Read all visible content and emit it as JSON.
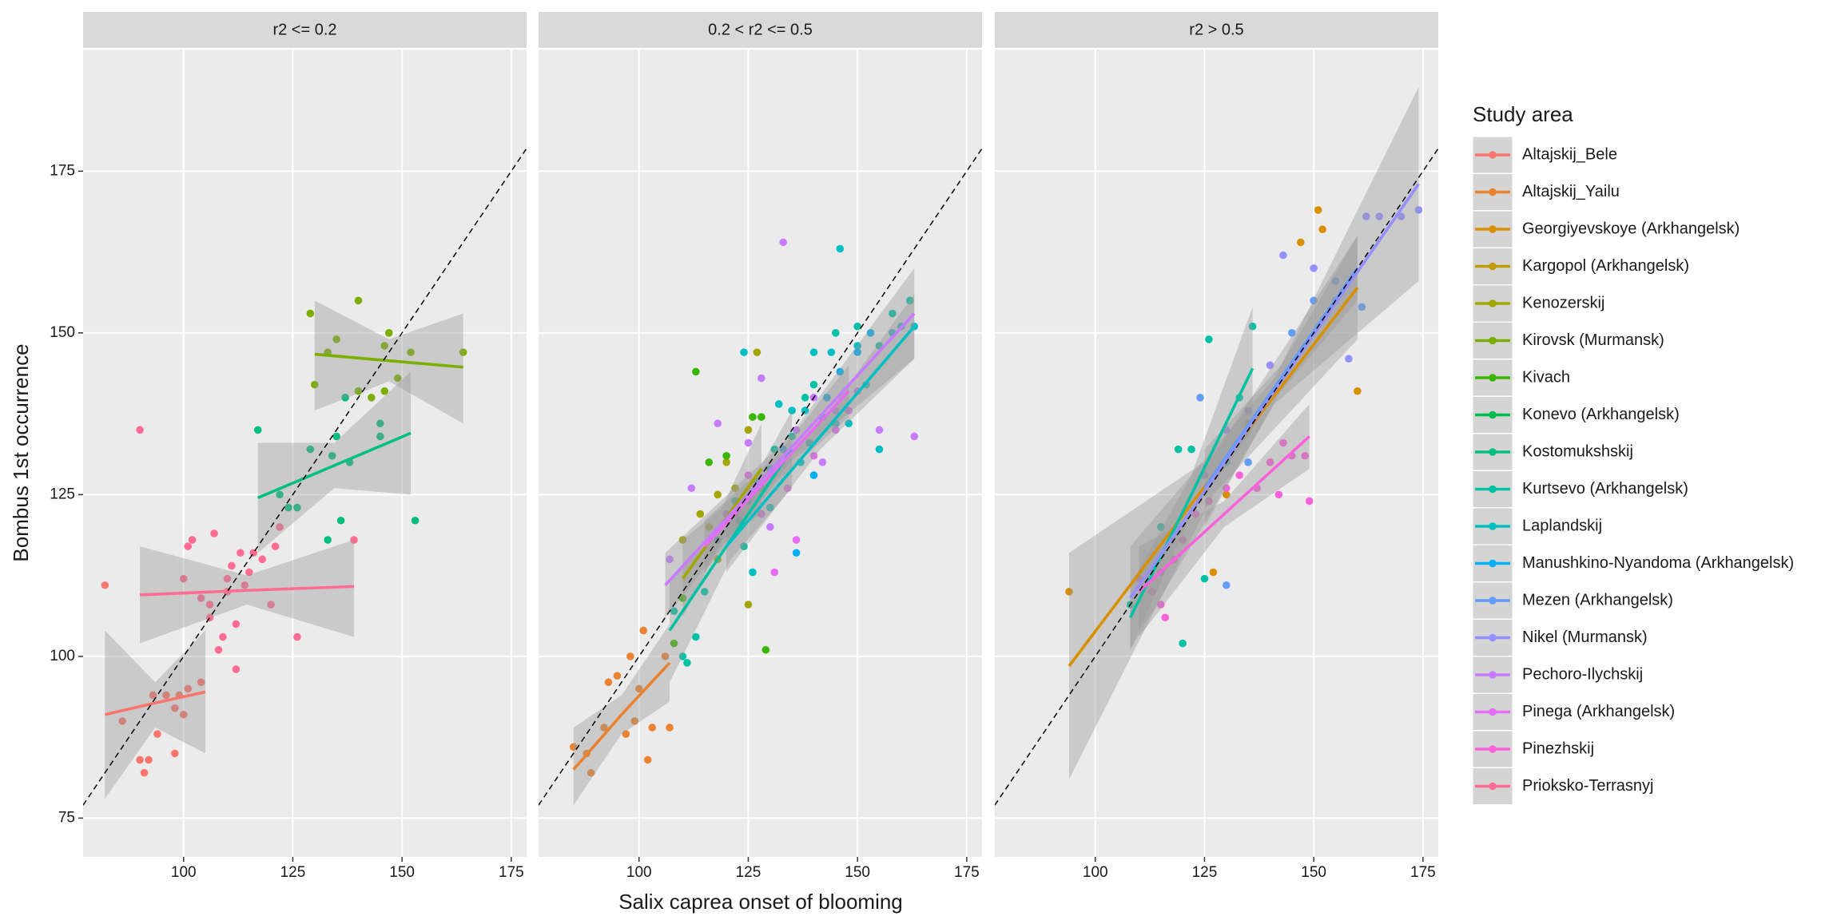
{
  "xlabel": "Salix caprea onset of blooming",
  "ylabel": "Bombus 1st occurrence",
  "reference_line": {
    "slope": 1,
    "intercept": 0
  },
  "legend": {
    "title": "Study area",
    "entries": [
      {
        "name": "Altajskij_Bele",
        "color": "#F8766D"
      },
      {
        "name": "Altajskij_Yailu",
        "color": "#EA8331"
      },
      {
        "name": "Georgiyevskoye (Arkhangelsk)",
        "color": "#D89000"
      },
      {
        "name": "Kargopol (Arkhangelsk)",
        "color": "#C09B00"
      },
      {
        "name": "Kenozerskij",
        "color": "#A3A500"
      },
      {
        "name": "Kirovsk (Murmansk)",
        "color": "#7CAE00"
      },
      {
        "name": "Kivach",
        "color": "#39B600"
      },
      {
        "name": "Konevo (Arkhangelsk)",
        "color": "#00BB4E"
      },
      {
        "name": "Kostomukshskij",
        "color": "#00BF7D"
      },
      {
        "name": "Kurtsevo (Arkhangelsk)",
        "color": "#00C1A3"
      },
      {
        "name": "Laplandskij",
        "color": "#00BFC4"
      },
      {
        "name": "Manushkino-Nyandoma (Arkhangelsk)",
        "color": "#00B0F6"
      },
      {
        "name": "Mezen (Arkhangelsk)",
        "color": "#619CFF"
      },
      {
        "name": "Nikel (Murmansk)",
        "color": "#9590FF"
      },
      {
        "name": "Pechoro-Ilychskij",
        "color": "#C77CFF"
      },
      {
        "name": "Pinega (Arkhangelsk)",
        "color": "#E76BF3"
      },
      {
        "name": "Pinezhskij",
        "color": "#FA62DB"
      },
      {
        "name": "Prioksko-Terrasnyj",
        "color": "#FF6C91"
      }
    ]
  },
  "chart_data": [
    {
      "type": "scatter",
      "title": "r2 <= 0.2",
      "grid": true,
      "xlim": [
        77,
        178.5
      ],
      "ylim": [
        69,
        193.8
      ],
      "xticks": [
        100,
        125,
        150,
        175
      ],
      "yticks": [
        75,
        100,
        125,
        150,
        175
      ],
      "series": [
        {
          "name": "Altajskij_Bele",
          "x": [
            82,
            86,
            90,
            91,
            92,
            93,
            94,
            96,
            98,
            98,
            99,
            100,
            101,
            104
          ],
          "values": [
            111,
            90,
            84,
            82,
            84,
            94,
            88,
            94,
            85,
            92,
            94,
            91,
            95,
            96
          ],
          "fit": {
            "x": [
              82,
              93.5,
              105
            ],
            "values": [
              91,
              92.8,
              94.5
            ],
            "lower": [
              78,
              89,
              85
            ],
            "upper": [
              104,
              96,
              104
            ]
          }
        },
        {
          "name": "Prioksko-Terrasnyj",
          "x": [
            90,
            100,
            101,
            102,
            104,
            106,
            106,
            107,
            108,
            109,
            110,
            110,
            111,
            112,
            112,
            113,
            114,
            115,
            116,
            118,
            120,
            121,
            122,
            126,
            139
          ],
          "values": [
            135,
            112,
            117,
            118,
            109,
            106,
            108,
            119,
            101,
            103,
            110,
            112,
            114,
            105,
            98,
            116,
            111,
            113,
            116,
            115,
            108,
            117,
            120,
            103,
            118
          ],
          "fit": {
            "x": [
              90,
              114.5,
              139
            ],
            "values": [
              109.5,
              110.2,
              110.8
            ],
            "lower": [
              102,
              108,
              103
            ],
            "upper": [
              117,
              112.5,
              118
            ]
          }
        },
        {
          "name": "Kostomukshskij",
          "x": [
            117,
            122,
            124,
            126,
            129,
            133,
            134,
            135,
            136,
            137,
            138,
            140,
            145,
            145,
            153
          ],
          "values": [
            135,
            125,
            123,
            123,
            132,
            118,
            131,
            134,
            121,
            140,
            130,
            141,
            136,
            134,
            121
          ],
          "fit": {
            "x": [
              117,
              134.5,
              152
            ],
            "values": [
              124.5,
              129.5,
              134.5
            ],
            "lower": [
              116,
              126,
              125
            ],
            "upper": [
              133,
              133,
              144
            ]
          }
        },
        {
          "name": "Kirovsk (Murmansk)",
          "x": [
            129,
            130,
            133,
            135,
            140,
            140,
            143,
            146,
            146,
            147,
            149,
            152,
            164
          ],
          "values": [
            153,
            142,
            147,
            149,
            155,
            141,
            140,
            141,
            148,
            150,
            143,
            147,
            147
          ],
          "fit": {
            "x": [
              130,
              147,
              164
            ],
            "values": [
              146.7,
              145.7,
              144.7
            ],
            "lower": [
              138,
              142.5,
              136
            ],
            "upper": [
              155,
              149,
              153
            ]
          }
        }
      ]
    },
    {
      "type": "scatter",
      "title": "0.2 < r2 <= 0.5",
      "grid": true,
      "xlim": [
        77,
        178.5
      ],
      "ylim": [
        69,
        193.8
      ],
      "xticks": [
        100,
        125,
        150,
        175
      ],
      "yticks": [
        75,
        100,
        125,
        150,
        175
      ],
      "series": [
        {
          "name": "Altajskij_Yailu",
          "x": [
            85,
            88,
            89,
            92,
            93,
            95,
            97,
            98,
            99,
            100,
            101,
            102,
            103,
            106,
            107
          ],
          "values": [
            86,
            85,
            82,
            89,
            96,
            97,
            88,
            100,
            90,
            95,
            104,
            84,
            89,
            100,
            89
          ],
          "fit": {
            "x": [
              85,
              96,
              107
            ],
            "values": [
              82.5,
              91,
              99
            ],
            "lower": [
              77,
              88,
              93
            ],
            "upper": [
              89,
              94,
              105
            ]
          }
        },
        {
          "name": "Kenozerskij",
          "x": [
            110,
            114,
            116,
            118,
            118,
            120,
            122,
            125,
            125,
            127,
            128
          ],
          "values": [
            118,
            122,
            120,
            125,
            115,
            130,
            126,
            108,
            135,
            147,
            137
          ],
          "fit": {
            "x": [
              110,
              119,
              128
            ],
            "values": [
              112,
              120.5,
              129
            ],
            "lower": [
              106,
              118,
              122
            ],
            "upper": [
              118,
              123,
              136
            ]
          }
        },
        {
          "name": "Kivach",
          "x": [
            108,
            110,
            113,
            116,
            120,
            126,
            128,
            129
          ],
          "values": [
            102,
            109,
            144,
            130,
            131,
            137,
            137,
            101
          ]
        },
        {
          "name": "Kurtsevo (Arkhangelsk)",
          "x": [
            108,
            110,
            111,
            113,
            115,
            118,
            122,
            124,
            128,
            131,
            135,
            138,
            140,
            145,
            150,
            155,
            158,
            162
          ],
          "values": [
            107,
            100,
            99,
            103,
            110,
            118,
            124,
            117,
            126,
            132,
            134,
            140,
            142,
            150,
            151,
            148,
            153,
            155
          ],
          "fit": {
            "x": [
              107,
              121,
              135
            ],
            "values": [
              104,
              118,
              132
            ],
            "lower": [
              96,
              115,
              126
            ],
            "upper": [
              112,
              121,
              138
            ]
          }
        },
        {
          "name": "Laplandskij",
          "x": [
            124,
            126,
            130,
            132,
            135,
            137,
            138,
            139,
            140,
            142,
            144,
            145,
            146,
            148,
            150,
            152,
            155,
            158,
            160,
            163
          ],
          "values": [
            147,
            113,
            123,
            139,
            138,
            130,
            138,
            133,
            147,
            137,
            147,
            136,
            163,
            136,
            148,
            142,
            132,
            150,
            151,
            151
          ],
          "fit": {
            "x": [
              120,
              141.5,
              163
            ],
            "values": [
              117,
              134,
              151
            ],
            "lower": [
              113,
              132,
              146
            ],
            "upper": [
              121,
              136,
              156
            ]
          }
        },
        {
          "name": "Manushkino-Nyandoma (Arkhangelsk)",
          "x": [
            123,
            125,
            127,
            130,
            133,
            136,
            140,
            143,
            146,
            150,
            153
          ],
          "values": [
            121,
            124,
            127,
            129,
            132,
            116,
            128,
            140,
            144,
            147,
            150
          ]
        },
        {
          "name": "Pechoro-Ilychskij",
          "x": [
            107,
            112,
            118,
            122,
            125,
            128,
            130,
            133,
            136,
            140,
            142,
            145,
            150,
            155,
            163
          ],
          "values": [
            115,
            126,
            136,
            122,
            133,
            143,
            120,
            164,
            135,
            140,
            130,
            138,
            141,
            135,
            134
          ],
          "fit": {
            "x": [
              106,
              134.5,
              163
            ],
            "values": [
              111,
              132,
              153
            ],
            "lower": [
              106,
              130,
              146
            ],
            "upper": [
              116,
              134,
              160
            ]
          }
        },
        {
          "name": "Pinega (Arkhangelsk)",
          "x": [
            120,
            125,
            128,
            131,
            134,
            136,
            140,
            145,
            148
          ],
          "values": [
            122,
            128,
            122,
            113,
            126,
            118,
            131,
            135,
            138
          ],
          "fit": {
            "x": [
              115,
              131.5,
              148
            ],
            "values": [
              117,
              129,
              141
            ],
            "lower": [
              113,
              127,
              137
            ],
            "upper": [
              121,
              131,
              145
            ]
          }
        }
      ]
    },
    {
      "type": "scatter",
      "title": "r2 > 0.5",
      "grid": true,
      "xlim": [
        77,
        178.5
      ],
      "ylim": [
        69,
        193.8
      ],
      "xticks": [
        100,
        125,
        150,
        175
      ],
      "yticks": [
        75,
        100,
        125,
        150,
        175
      ],
      "series": [
        {
          "name": "Georgiyevskoye (Arkhangelsk)",
          "x": [
            94,
            127,
            130,
            135,
            140,
            147,
            151,
            152,
            160
          ],
          "values": [
            110,
            113,
            125,
            136,
            130,
            164,
            169,
            166,
            141
          ],
          "fit": {
            "x": [
              94,
              127,
              160
            ],
            "values": [
              98.5,
              128,
              157
            ],
            "lower": [
              81,
              125,
              149
            ],
            "upper": [
              116,
              131,
              165
            ]
          }
        },
        {
          "name": "Kurtsevo (Arkhangelsk)",
          "x": [
            108,
            115,
            119,
            120,
            122,
            125,
            126,
            130,
            133,
            136
          ],
          "values": [
            108,
            120,
            132,
            102,
            132,
            112,
            149,
            130,
            140,
            151
          ],
          "fit": {
            "x": [
              108,
              122,
              136
            ],
            "values": [
              106,
              125,
              144.5
            ],
            "lower": [
              101,
              122,
              135
            ],
            "upper": [
              111,
              128,
              154
            ]
          }
        },
        {
          "name": "Mezen (Arkhangelsk)",
          "x": [
            124,
            130,
            135,
            140,
            145,
            150,
            155,
            161
          ],
          "values": [
            140,
            111,
            130,
            140,
            150,
            155,
            158,
            154
          ],
          "fit": {
            "x": [
              125,
              142.5,
              160
            ],
            "values": [
              126,
              143,
              160
            ],
            "lower": [
              120,
              141,
              155
            ],
            "upper": [
              132,
              145,
              165
            ]
          }
        },
        {
          "name": "Nikel (Murmansk)",
          "x": [
            115,
            125,
            130,
            135,
            140,
            143,
            150,
            155,
            158,
            162,
            165,
            170,
            174
          ],
          "values": [
            113,
            128,
            135,
            138,
            145,
            162,
            160,
            155,
            146,
            168,
            168,
            168,
            169
          ],
          "fit": {
            "x": [
              108,
              141,
              174
            ],
            "values": [
              109,
              141,
              173
            ],
            "lower": [
              101,
              139,
              158
            ],
            "upper": [
              117,
              143,
              188
            ]
          }
        },
        {
          "name": "Pinezhskij",
          "x": [
            110,
            113,
            115,
            116,
            118,
            120,
            123,
            126,
            130,
            133,
            137,
            140,
            142,
            143,
            145,
            148,
            149
          ],
          "values": [
            112,
            110,
            108,
            106,
            115,
            118,
            122,
            124,
            126,
            128,
            126,
            130,
            125,
            133,
            131,
            131,
            124
          ],
          "fit": {
            "x": [
              110,
              129.5,
              149
            ],
            "values": [
              110,
              122,
              134
            ],
            "lower": [
              103,
              120,
              129
            ],
            "upper": [
              117,
              124,
              139
            ]
          }
        }
      ]
    }
  ]
}
